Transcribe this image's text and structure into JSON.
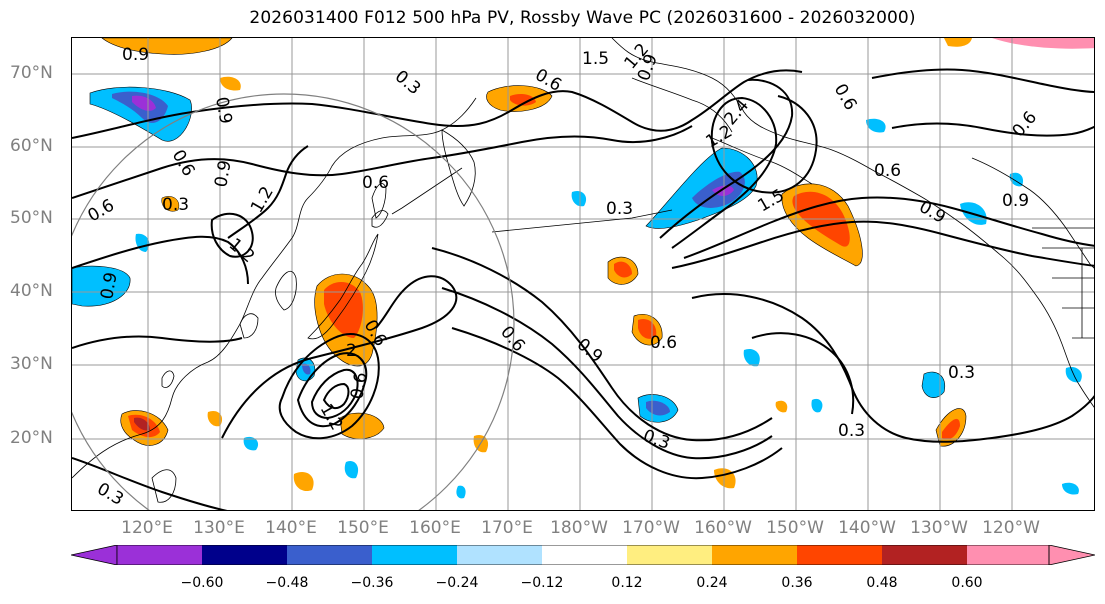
{
  "title": "2026031400 F012 500 hPa PV, Rossby Wave PC (2026031600 - 2026032000)",
  "lat_labels": [
    "70°N",
    "60°N",
    "50°N",
    "40°N",
    "30°N",
    "20°N"
  ],
  "lon_labels": [
    "120°E",
    "130°E",
    "140°E",
    "150°E",
    "160°E",
    "170°E",
    "180°W",
    "170°W",
    "160°W",
    "150°W",
    "140°W",
    "130°W",
    "120°W"
  ],
  "colorbar": {
    "ticks": [
      "−0.60",
      "−0.48",
      "−0.36",
      "−0.24",
      "−0.12",
      "0.12",
      "0.24",
      "0.36",
      "0.48",
      "0.60"
    ],
    "colors": [
      "#9b30d8",
      "#00008b",
      "#3a5fcd",
      "#00bfff",
      "#b0e2ff",
      "#ffffff",
      "#ffee80",
      "#ffa500",
      "#ff4500",
      "#b22222",
      "#ff8fb0"
    ]
  },
  "contour_labels": [
    "0.9",
    "0.3",
    "0.9",
    "0.6",
    "1.2",
    "0.9",
    "0.6",
    "0.6",
    "0.9",
    "1.2",
    "0.3",
    "0.3",
    "0.6",
    "2",
    "1.2",
    "0.6",
    "0.6",
    "1.5",
    "1.2",
    "0.9",
    "0.6",
    "2.4",
    "1.5",
    "0.6",
    "1.2",
    "0.9",
    "0.9",
    "0.6",
    "0.6",
    "0.3",
    "0.6",
    "0.9",
    "0.3",
    "0.3",
    "0.3"
  ],
  "map_colors": {
    "purple": "#9b30d8",
    "darkblue": "#3a5fcd",
    "blue": "#00bfff",
    "lightblue": "#b0e2ff",
    "yellow": "#ffee80",
    "orange": "#ffa500",
    "red": "#ff4500",
    "darkred": "#b22222",
    "grid": "#999999",
    "circle": "#808080"
  }
}
